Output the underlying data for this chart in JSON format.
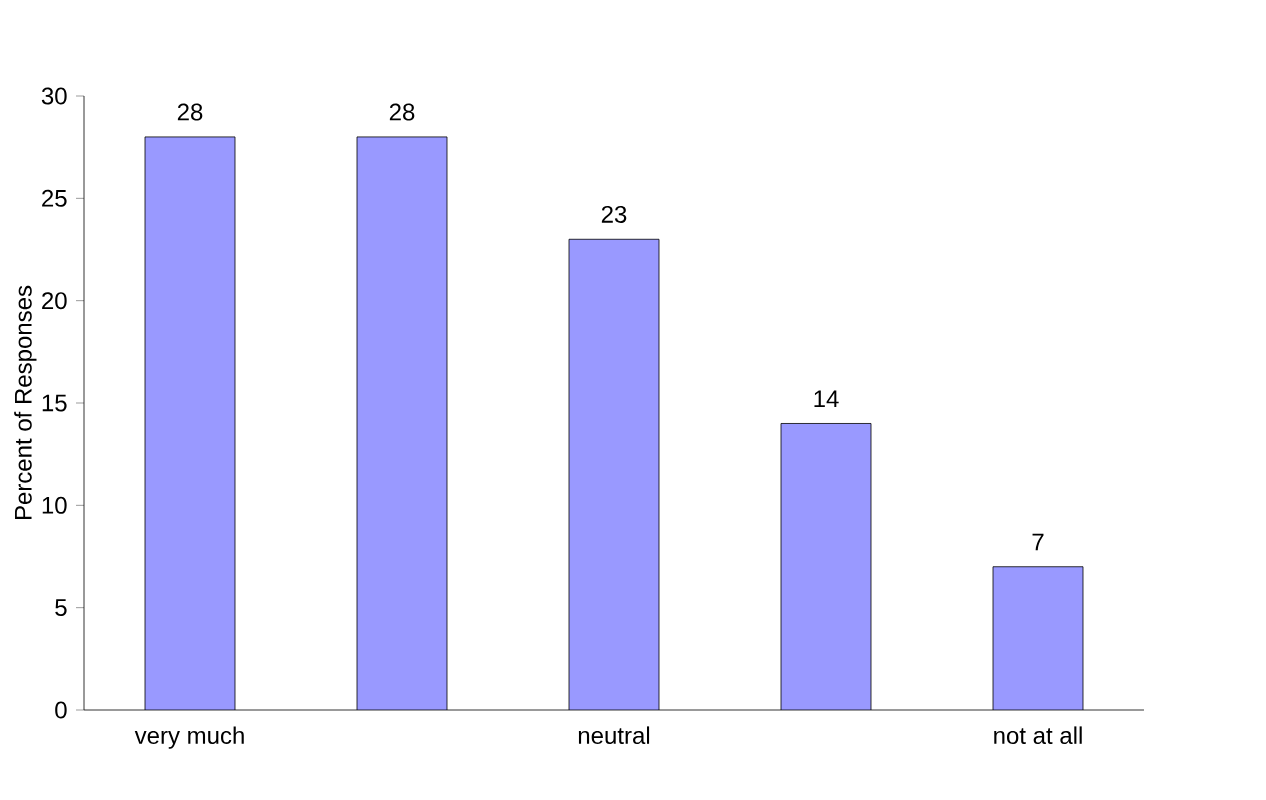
{
  "chart_data": {
    "type": "bar",
    "ylabel": "Percent of Responses",
    "categories": [
      "very much",
      null,
      "neutral",
      null,
      "not at all"
    ],
    "values": [
      28,
      28,
      23,
      14,
      7
    ],
    "color": "#9999ff",
    "ylim": [
      0,
      30
    ],
    "yticks": [
      0,
      5,
      10,
      15,
      20,
      25,
      30
    ],
    "grid": false,
    "data_labels": true
  }
}
